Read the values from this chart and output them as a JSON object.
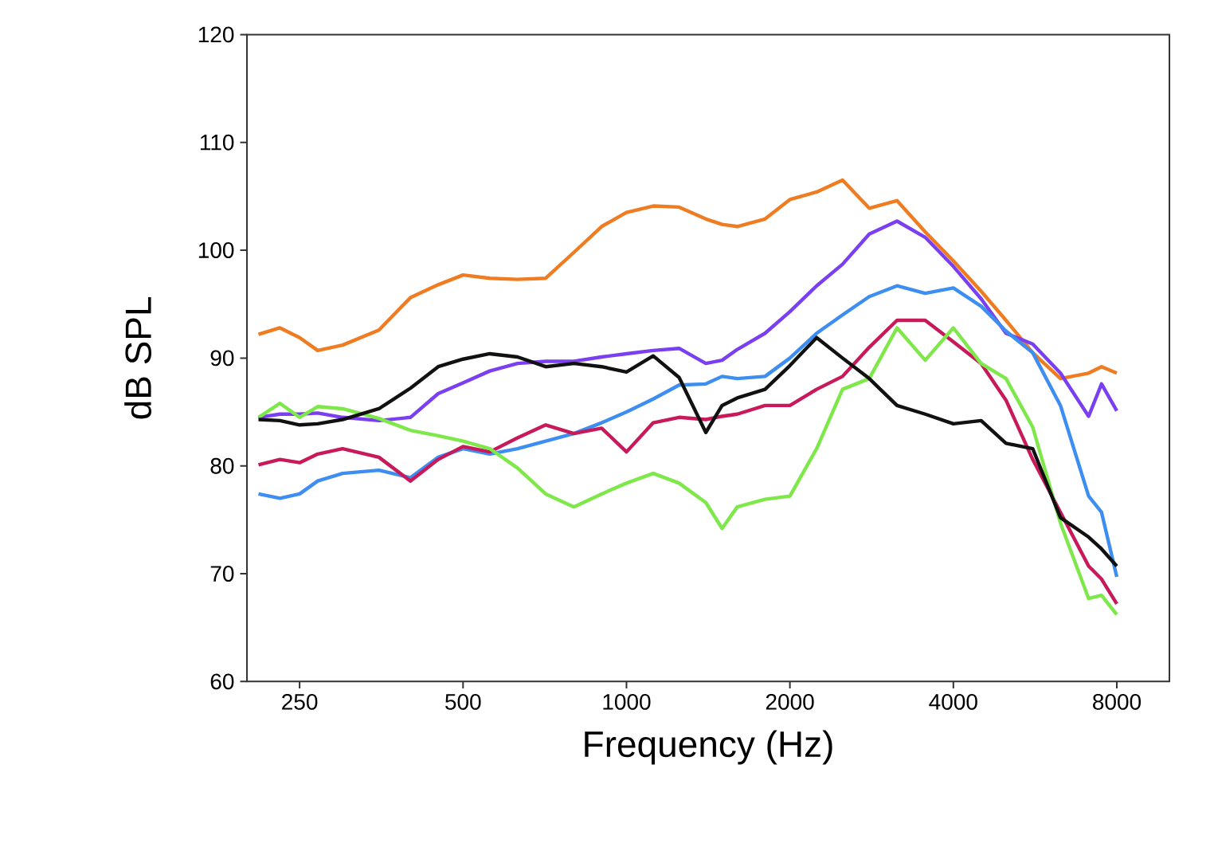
{
  "chart_data": {
    "type": "line",
    "xlabel": "Frequency (Hz)",
    "ylabel": "dB SPL",
    "log": "x",
    "xlim": [
      200,
      10000
    ],
    "ylim": [
      60,
      120
    ],
    "xticks": [
      250,
      500,
      1000,
      2000,
      4000,
      8000
    ],
    "yticks": [
      60,
      70,
      80,
      90,
      100,
      110,
      120
    ],
    "grid": false,
    "marker": "none",
    "line_style": "solid",
    "x": [
      210,
      230,
      250,
      270,
      300,
      350,
      400,
      450,
      500,
      560,
      630,
      710,
      800,
      900,
      1000,
      1120,
      1250,
      1400,
      1500,
      1600,
      1800,
      2000,
      2240,
      2500,
      2800,
      3150,
      3550,
      4000,
      4500,
      5000,
      5600,
      6300,
      7100,
      7500,
      8000
    ],
    "series": [
      {
        "color": "#f07c22",
        "values": [
          92.2,
          92.8,
          91.9,
          90.7,
          91.2,
          92.6,
          95.6,
          96.8,
          97.7,
          97.4,
          97.3,
          97.4,
          99.8,
          102.2,
          103.5,
          104.1,
          104.0,
          102.9,
          102.4,
          102.2,
          102.9,
          104.7,
          105.4,
          106.5,
          103.9,
          104.6,
          101.7,
          99.0,
          96.2,
          93.5,
          90.5,
          88.1,
          88.6,
          89.2,
          88.6
        ]
      },
      {
        "color": "#7a3ff0",
        "values": [
          84.5,
          84.8,
          84.8,
          84.9,
          84.5,
          84.2,
          84.5,
          86.7,
          87.7,
          88.8,
          89.5,
          89.7,
          89.7,
          90.1,
          90.4,
          90.7,
          90.9,
          89.5,
          89.8,
          90.8,
          92.3,
          94.3,
          96.7,
          98.7,
          101.5,
          102.7,
          101.2,
          98.5,
          95.5,
          92.3,
          91.3,
          88.6,
          84.6,
          87.6,
          85.1
        ]
      },
      {
        "color": "#3d8ef0",
        "values": [
          77.4,
          77.0,
          77.4,
          78.6,
          79.3,
          79.6,
          78.9,
          80.8,
          81.6,
          81.1,
          81.6,
          82.3,
          83.0,
          84.0,
          85.0,
          86.2,
          87.5,
          87.6,
          88.3,
          88.1,
          88.3,
          90.0,
          92.3,
          94.0,
          95.7,
          96.7,
          96.0,
          96.5,
          94.8,
          92.5,
          90.5,
          85.6,
          77.2,
          75.7,
          69.7
        ]
      },
      {
        "color": "#c8195a",
        "values": [
          80.1,
          80.6,
          80.3,
          81.1,
          81.6,
          80.8,
          78.6,
          80.6,
          81.8,
          81.3,
          82.6,
          83.8,
          83.0,
          83.5,
          81.3,
          84.0,
          84.5,
          84.3,
          84.6,
          84.8,
          85.6,
          85.6,
          87.1,
          88.3,
          91.0,
          93.5,
          93.5,
          91.5,
          89.5,
          86.1,
          80.6,
          75.7,
          70.7,
          69.5,
          67.2
        ]
      },
      {
        "color": "#7ee84a",
        "values": [
          84.5,
          85.8,
          84.5,
          85.5,
          85.3,
          84.4,
          83.3,
          82.8,
          82.3,
          81.6,
          79.8,
          77.4,
          76.2,
          77.4,
          78.4,
          79.3,
          78.4,
          76.6,
          74.2,
          76.2,
          76.9,
          77.2,
          81.6,
          87.1,
          88.1,
          92.8,
          89.8,
          92.8,
          89.5,
          88.1,
          83.6,
          74.7,
          67.7,
          68.0,
          66.2
        ]
      },
      {
        "color": "#111111",
        "values": [
          84.3,
          84.2,
          83.8,
          83.9,
          84.3,
          85.3,
          87.2,
          89.2,
          89.9,
          90.4,
          90.1,
          89.2,
          89.5,
          89.2,
          88.7,
          90.2,
          88.2,
          83.1,
          85.6,
          86.3,
          87.1,
          89.3,
          91.9,
          90.0,
          88.1,
          85.6,
          84.8,
          83.9,
          84.2,
          82.1,
          81.6,
          75.2,
          73.4,
          72.3,
          70.7
        ]
      }
    ]
  }
}
